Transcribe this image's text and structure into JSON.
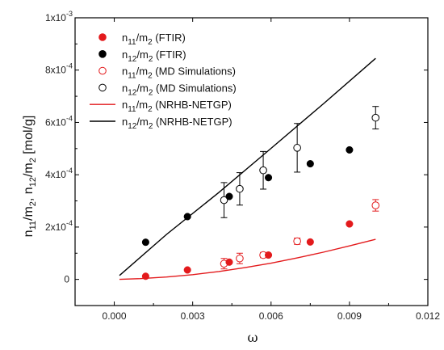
{
  "chart_data": {
    "type": "scatter",
    "xlabel": "ω",
    "ylabel": {
      "n": "n",
      "s11": "11",
      "m": "/m",
      "s2a": "2",
      "sep": ", n",
      "s12": "12",
      "s2b": "2",
      "unit": " [mol/g]"
    },
    "xlim": [
      -0.0015,
      0.012
    ],
    "ylim": [
      -0.0001,
      0.001
    ],
    "x_ticks": [
      {
        "value": 0.0,
        "label": "0.000"
      },
      {
        "value": 0.003,
        "label": "0.003"
      },
      {
        "value": 0.006,
        "label": "0.006"
      },
      {
        "value": 0.009,
        "label": "0.009"
      },
      {
        "value": 0.012,
        "label": "0.012"
      }
    ],
    "y_ticks": [
      {
        "value": 0,
        "base": "0",
        "exp": ""
      },
      {
        "value": 0.0002,
        "base": "2x10",
        "exp": "-4"
      },
      {
        "value": 0.0004,
        "base": "4x10",
        "exp": "-4"
      },
      {
        "value": 0.0006,
        "base": "6x10",
        "exp": "-4"
      },
      {
        "value": 0.0008,
        "base": "8x10",
        "exp": "-4"
      },
      {
        "value": 0.001,
        "base": "1x10",
        "exp": "-3"
      }
    ],
    "grid": false,
    "legend_position": "top-left",
    "series": [
      {
        "name": {
          "a": "n",
          "s1": "11",
          "b": "/m",
          "s2": "2",
          "c": " (FTIR)"
        },
        "kind": "filled-circle",
        "color": "#e31a1c",
        "points": [
          [
            0.0012,
            1.2e-05
          ],
          [
            0.0028,
            3.6e-05
          ],
          [
            0.0044,
            6.6e-05
          ],
          [
            0.0059,
            9.3e-05
          ],
          [
            0.0075,
            0.000143
          ],
          [
            0.009,
            0.000212
          ]
        ]
      },
      {
        "name": {
          "a": "n",
          "s1": "12",
          "b": "/m",
          "s2": "2",
          "c": " (FTIR)"
        },
        "kind": "filled-circle",
        "color": "#000000",
        "points": [
          [
            0.0012,
            0.000142
          ],
          [
            0.0028,
            0.00024
          ],
          [
            0.0044,
            0.000317
          ],
          [
            0.0059,
            0.000389
          ],
          [
            0.0075,
            0.000442
          ],
          [
            0.009,
            0.000495
          ]
        ]
      },
      {
        "name": {
          "a": "n",
          "s1": "11",
          "b": "/m",
          "s2": "2",
          "c": " (MD Simulations)"
        },
        "kind": "open-circle",
        "color": "#e31a1c",
        "points": [
          [
            0.0042,
            6e-05,
            2e-05
          ],
          [
            0.0048,
            8e-05,
            2e-05
          ],
          [
            0.0057,
            9.3e-05,
            1e-05
          ],
          [
            0.007,
            0.000146,
            1.2e-05
          ],
          [
            0.01,
            0.000283,
            2.2e-05
          ]
        ]
      },
      {
        "name": {
          "a": "n",
          "s1": "12",
          "b": "/m",
          "s2": "2",
          "c": " (MD Simulations)"
        },
        "kind": "open-circle",
        "color": "#000000",
        "points": [
          [
            0.0042,
            0.000303,
            6.7e-05
          ],
          [
            0.0048,
            0.000346,
            6.2e-05
          ],
          [
            0.0057,
            0.000417,
            7.2e-05
          ],
          [
            0.007,
            0.000503,
            9.3e-05
          ],
          [
            0.01,
            0.000618,
            4.3e-05
          ]
        ]
      },
      {
        "name": {
          "a": "n",
          "s1": "11",
          "b": "/m",
          "s2": "2",
          "c": " (NRHB-NETGP)"
        },
        "kind": "line",
        "color": "#e31a1c",
        "points": [
          [
            0.0002,
            0.0
          ],
          [
            0.001,
            3e-06
          ],
          [
            0.002,
            9e-06
          ],
          [
            0.003,
            1.8e-05
          ],
          [
            0.004,
            3e-05
          ],
          [
            0.005,
            4.5e-05
          ],
          [
            0.006,
            6.2e-05
          ],
          [
            0.007,
            8.2e-05
          ],
          [
            0.008,
            0.000104
          ],
          [
            0.009,
            0.000128
          ],
          [
            0.01,
            0.000153
          ]
        ]
      },
      {
        "name": {
          "a": "n",
          "s1": "12",
          "b": "/m",
          "s2": "2",
          "c": " (NRHB-NETGP)"
        },
        "kind": "line",
        "color": "#000000",
        "points": [
          [
            0.0002,
            1.5e-05
          ],
          [
            0.002,
            0.000172
          ],
          [
            0.004,
            0.000332
          ],
          [
            0.006,
            0.000501
          ],
          [
            0.008,
            0.000671
          ],
          [
            0.01,
            0.000845
          ]
        ]
      }
    ]
  }
}
